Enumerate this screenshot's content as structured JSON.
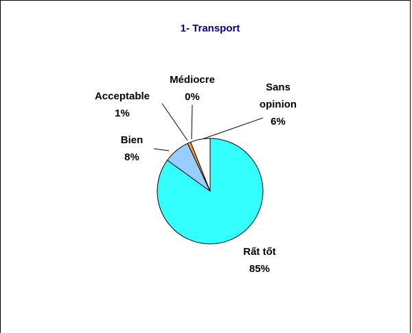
{
  "chart_data": {
    "type": "pie",
    "title": "1- Transport",
    "categories": [
      "Rất tốt",
      "Bien",
      "Acceptable",
      "Médiocre",
      "Sans opinion"
    ],
    "values": [
      85,
      8,
      1,
      0,
      6
    ],
    "value_labels": [
      "85%",
      "8%",
      "1%",
      "0%",
      "6%"
    ],
    "colors": [
      "#33ffff",
      "#99ccff",
      "#ff9933",
      "#cc3300",
      "#ffffff"
    ]
  }
}
